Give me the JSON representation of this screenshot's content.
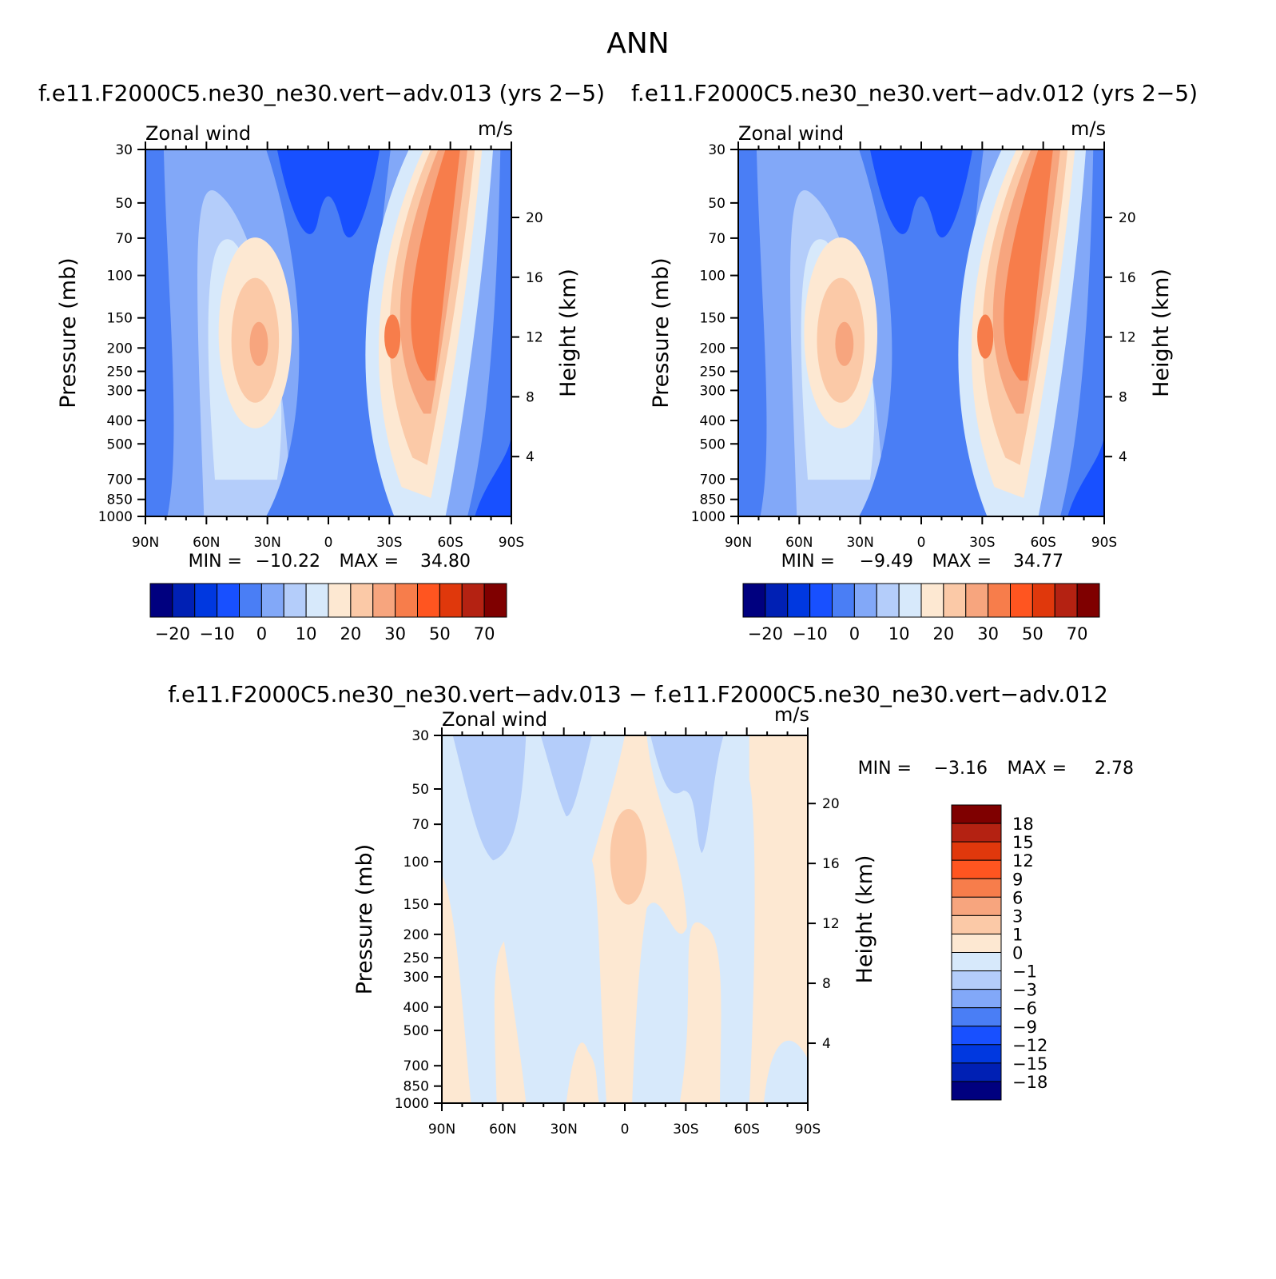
{
  "figure": {
    "title": "ANN",
    "panels": [
      {
        "title": "f.e11.F2000C5.ne30_ne30.vert−adv.013 (yrs 2−5)",
        "variable": "Zonal wind",
        "units": "m/s",
        "ylabel": "Pressure (mb)",
        "right_label": "Height (km)",
        "stats": {
          "min_label": "MIN =",
          "min_value": "−10.22",
          "max_label": "MAX =",
          "max_value": "34.80"
        }
      },
      {
        "title": "f.e11.F2000C5.ne30_ne30.vert−adv.012 (yrs 2−5)",
        "variable": "Zonal wind",
        "units": "m/s",
        "ylabel": "Pressure (mb)",
        "right_label": "Height (km)",
        "stats": {
          "min_label": "MIN =",
          "min_value": "−9.49",
          "max_label": "MAX =",
          "max_value": "34.77"
        }
      },
      {
        "title": "f.e11.F2000C5.ne30_ne30.vert−adv.013 − f.e11.F2000C5.ne30_ne30.vert−adv.012",
        "variable": "Zonal wind",
        "units": "m/s",
        "ylabel": "Pressure (mb)",
        "right_label": "Height (km)",
        "stats": {
          "min_label": "MIN =",
          "min_value": "−3.16",
          "max_label": "MAX =",
          "max_value": "2.78"
        }
      }
    ]
  },
  "chart_data": [
    {
      "type": "heatmap",
      "title": "f.e11.F2000C5.ne30_ne30.vert−adv.013 (yrs 2−5)",
      "xlabel": "",
      "ylabel": "Pressure (mb)",
      "y2label": "Height (km)",
      "x_ticks": [
        "90N",
        "60N",
        "30N",
        "0",
        "30S",
        "60S",
        "90S"
      ],
      "x_range": [
        90,
        -90
      ],
      "y_ticks": [
        30,
        50,
        70,
        100,
        150,
        200,
        250,
        300,
        400,
        500,
        700,
        850,
        1000
      ],
      "y_range": [
        1000,
        30
      ],
      "y2_ticks": [
        4,
        8,
        12,
        16,
        20
      ],
      "colorbar": {
        "labels": [
          "−20",
          "−10",
          "0",
          "10",
          "20",
          "30",
          "50",
          "70"
        ]
      },
      "min": -10.22,
      "max": 34.8
    },
    {
      "type": "heatmap",
      "title": "f.e11.F2000C5.ne30_ne30.vert−adv.012 (yrs 2−5)",
      "xlabel": "",
      "ylabel": "Pressure (mb)",
      "y2label": "Height (km)",
      "x_ticks": [
        "90N",
        "60N",
        "30N",
        "0",
        "30S",
        "60S",
        "90S"
      ],
      "x_range": [
        90,
        -90
      ],
      "y_ticks": [
        30,
        50,
        70,
        100,
        150,
        200,
        250,
        300,
        400,
        500,
        700,
        850,
        1000
      ],
      "y_range": [
        1000,
        30
      ],
      "y2_ticks": [
        4,
        8,
        12,
        16,
        20
      ],
      "colorbar": {
        "labels": [
          "−20",
          "−10",
          "0",
          "10",
          "20",
          "30",
          "50",
          "70"
        ]
      },
      "min": -9.49,
      "max": 34.77
    },
    {
      "type": "heatmap",
      "title": "f.e11.F2000C5.ne30_ne30.vert−adv.013 − f.e11.F2000C5.ne30_ne30.vert−adv.012",
      "xlabel": "",
      "ylabel": "Pressure (mb)",
      "y2label": "Height (km)",
      "x_ticks": [
        "90N",
        "60N",
        "30N",
        "0",
        "30S",
        "60S",
        "90S"
      ],
      "x_range": [
        90,
        -90
      ],
      "y_ticks": [
        30,
        50,
        70,
        100,
        150,
        200,
        250,
        300,
        400,
        500,
        700,
        850,
        1000
      ],
      "y_range": [
        1000,
        30
      ],
      "y2_ticks": [
        4,
        8,
        12,
        16,
        20
      ],
      "colorbar": {
        "labels": [
          "18",
          "15",
          "12",
          "9",
          "6",
          "3",
          "1",
          "0",
          "−1",
          "−3",
          "−6",
          "−9",
          "−12",
          "−15",
          "−18"
        ]
      },
      "min": -3.16,
      "max": 2.78
    }
  ],
  "colormap": {
    "full": [
      "#00007f",
      "#0020b4",
      "#0038e0",
      "#1850ff",
      "#4a7ef5",
      "#82a8f8",
      "#b4cdfa",
      "#d7e9fb",
      "#fde8d2",
      "#fbc9a7",
      "#f7a57e",
      "#f77d4b",
      "#ff5520",
      "#e0380c",
      "#b42212",
      "#7f0000"
    ],
    "diff": [
      "#00007f",
      "#0020b4",
      "#0038e0",
      "#1850ff",
      "#4a7ef5",
      "#82a8f8",
      "#b4cdfa",
      "#d7e9fb",
      "#fde8d2",
      "#fbc9a7",
      "#f7a57e",
      "#f77d4b",
      "#ff5520",
      "#e0380c",
      "#b42212",
      "#7f0000"
    ]
  }
}
